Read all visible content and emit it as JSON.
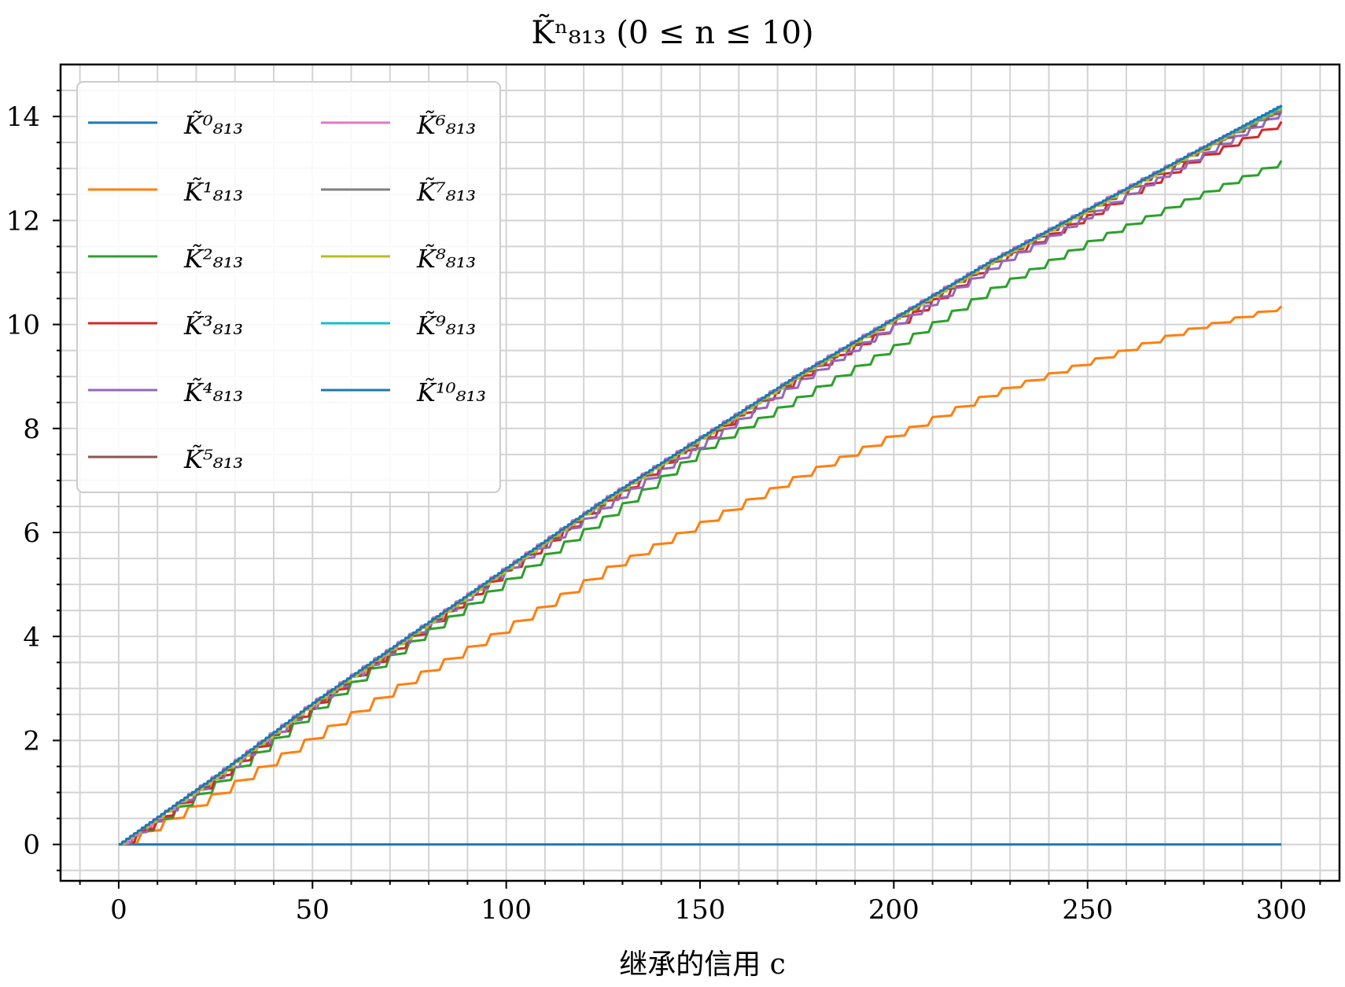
{
  "chart_data": {
    "type": "line",
    "title": "K̃ⁿ₈₁₃ (0 ≤ n ≤ 10)",
    "xlabel": "继承的信用 c",
    "ylabel": "",
    "xlim": [
      -15,
      315
    ],
    "ylim": [
      -0.7,
      15
    ],
    "xticks": [
      0,
      50,
      100,
      150,
      200,
      250,
      300
    ],
    "yticks": [
      0,
      2,
      4,
      6,
      8,
      10,
      12,
      14
    ],
    "xtick_labels": [
      "0",
      "50",
      "100",
      "150",
      "200",
      "250",
      "300"
    ],
    "ytick_labels": [
      "0",
      "2",
      "4",
      "6",
      "8",
      "10",
      "12",
      "14"
    ],
    "grid": true,
    "minor_grid": true,
    "legend_position": "top-left",
    "legend_columns": 2,
    "x": [
      0,
      25,
      50,
      75,
      100,
      125,
      150,
      175,
      200,
      225,
      250,
      275,
      300
    ],
    "series": [
      {
        "name": "K̃⁰₈₁₃",
        "color": "#1f77b4",
        "step": 0,
        "values": [
          0,
          0,
          0,
          0,
          0,
          0,
          0,
          0,
          0,
          0,
          0,
          0,
          0
        ]
      },
      {
        "name": "K̃¹₈₁₃",
        "color": "#ff7f0e",
        "step": 6,
        "values": [
          0,
          1.0,
          2.1,
          3.2,
          4.2,
          5.3,
          6.2,
          7.1,
          7.9,
          8.7,
          9.3,
          9.9,
          10.35
        ]
      },
      {
        "name": "K̃²₈₁₃",
        "color": "#2ca02c",
        "step": 5,
        "values": [
          0,
          1.2,
          2.6,
          3.9,
          5.1,
          6.3,
          7.6,
          8.6,
          9.6,
          10.7,
          11.6,
          12.4,
          13.15
        ]
      },
      {
        "name": "K̃³₈₁₃",
        "color": "#d62728",
        "step": 5,
        "values": [
          0,
          1.3,
          2.7,
          4.0,
          5.3,
          6.6,
          7.8,
          9.0,
          10.0,
          11.2,
          12.1,
          13.1,
          13.9
        ]
      },
      {
        "name": "K̃⁴₈₁₃",
        "color": "#9467bd",
        "step": 4,
        "values": [
          0,
          1.3,
          2.7,
          4.0,
          5.3,
          6.5,
          7.7,
          8.9,
          10.0,
          11.1,
          12.1,
          13.1,
          14.1
        ]
      },
      {
        "name": "K̃⁵₈₁₃",
        "color": "#8c564b",
        "step": 3,
        "values": [
          0,
          1.3,
          2.7,
          4.0,
          5.3,
          6.6,
          7.8,
          9.0,
          10.1,
          11.2,
          12.2,
          13.2,
          14.15
        ]
      },
      {
        "name": "K̃⁶₈₁₃",
        "color": "#e377c2",
        "step": 3,
        "values": [
          0,
          1.35,
          2.75,
          4.05,
          5.35,
          6.65,
          7.85,
          9.05,
          10.15,
          11.25,
          12.25,
          13.25,
          14.2
        ]
      },
      {
        "name": "K̃⁷₈₁₃",
        "color": "#7f7f7f",
        "step": 2,
        "values": [
          0,
          1.3,
          2.7,
          4.0,
          5.3,
          6.6,
          7.8,
          9.0,
          10.1,
          11.2,
          12.2,
          13.2,
          14.15
        ]
      },
      {
        "name": "K̃⁸₈₁₃",
        "color": "#bcbd22",
        "step": 2,
        "values": [
          0,
          1.3,
          2.7,
          4.0,
          5.3,
          6.6,
          7.8,
          9.0,
          10.1,
          11.2,
          12.2,
          13.2,
          14.2
        ]
      },
      {
        "name": "K̃⁹₈₁₃",
        "color": "#17becf",
        "step": 1,
        "values": [
          0,
          1.32,
          2.72,
          4.02,
          5.32,
          6.62,
          7.82,
          9.02,
          10.12,
          11.22,
          12.22,
          13.22,
          14.2
        ]
      },
      {
        "name": "K̃¹⁰₈₁₃",
        "color": "#1f77b4",
        "step": 1,
        "values": [
          0,
          1.32,
          2.72,
          4.02,
          5.32,
          6.62,
          7.82,
          9.02,
          10.12,
          11.22,
          12.22,
          13.22,
          14.22
        ]
      }
    ]
  }
}
